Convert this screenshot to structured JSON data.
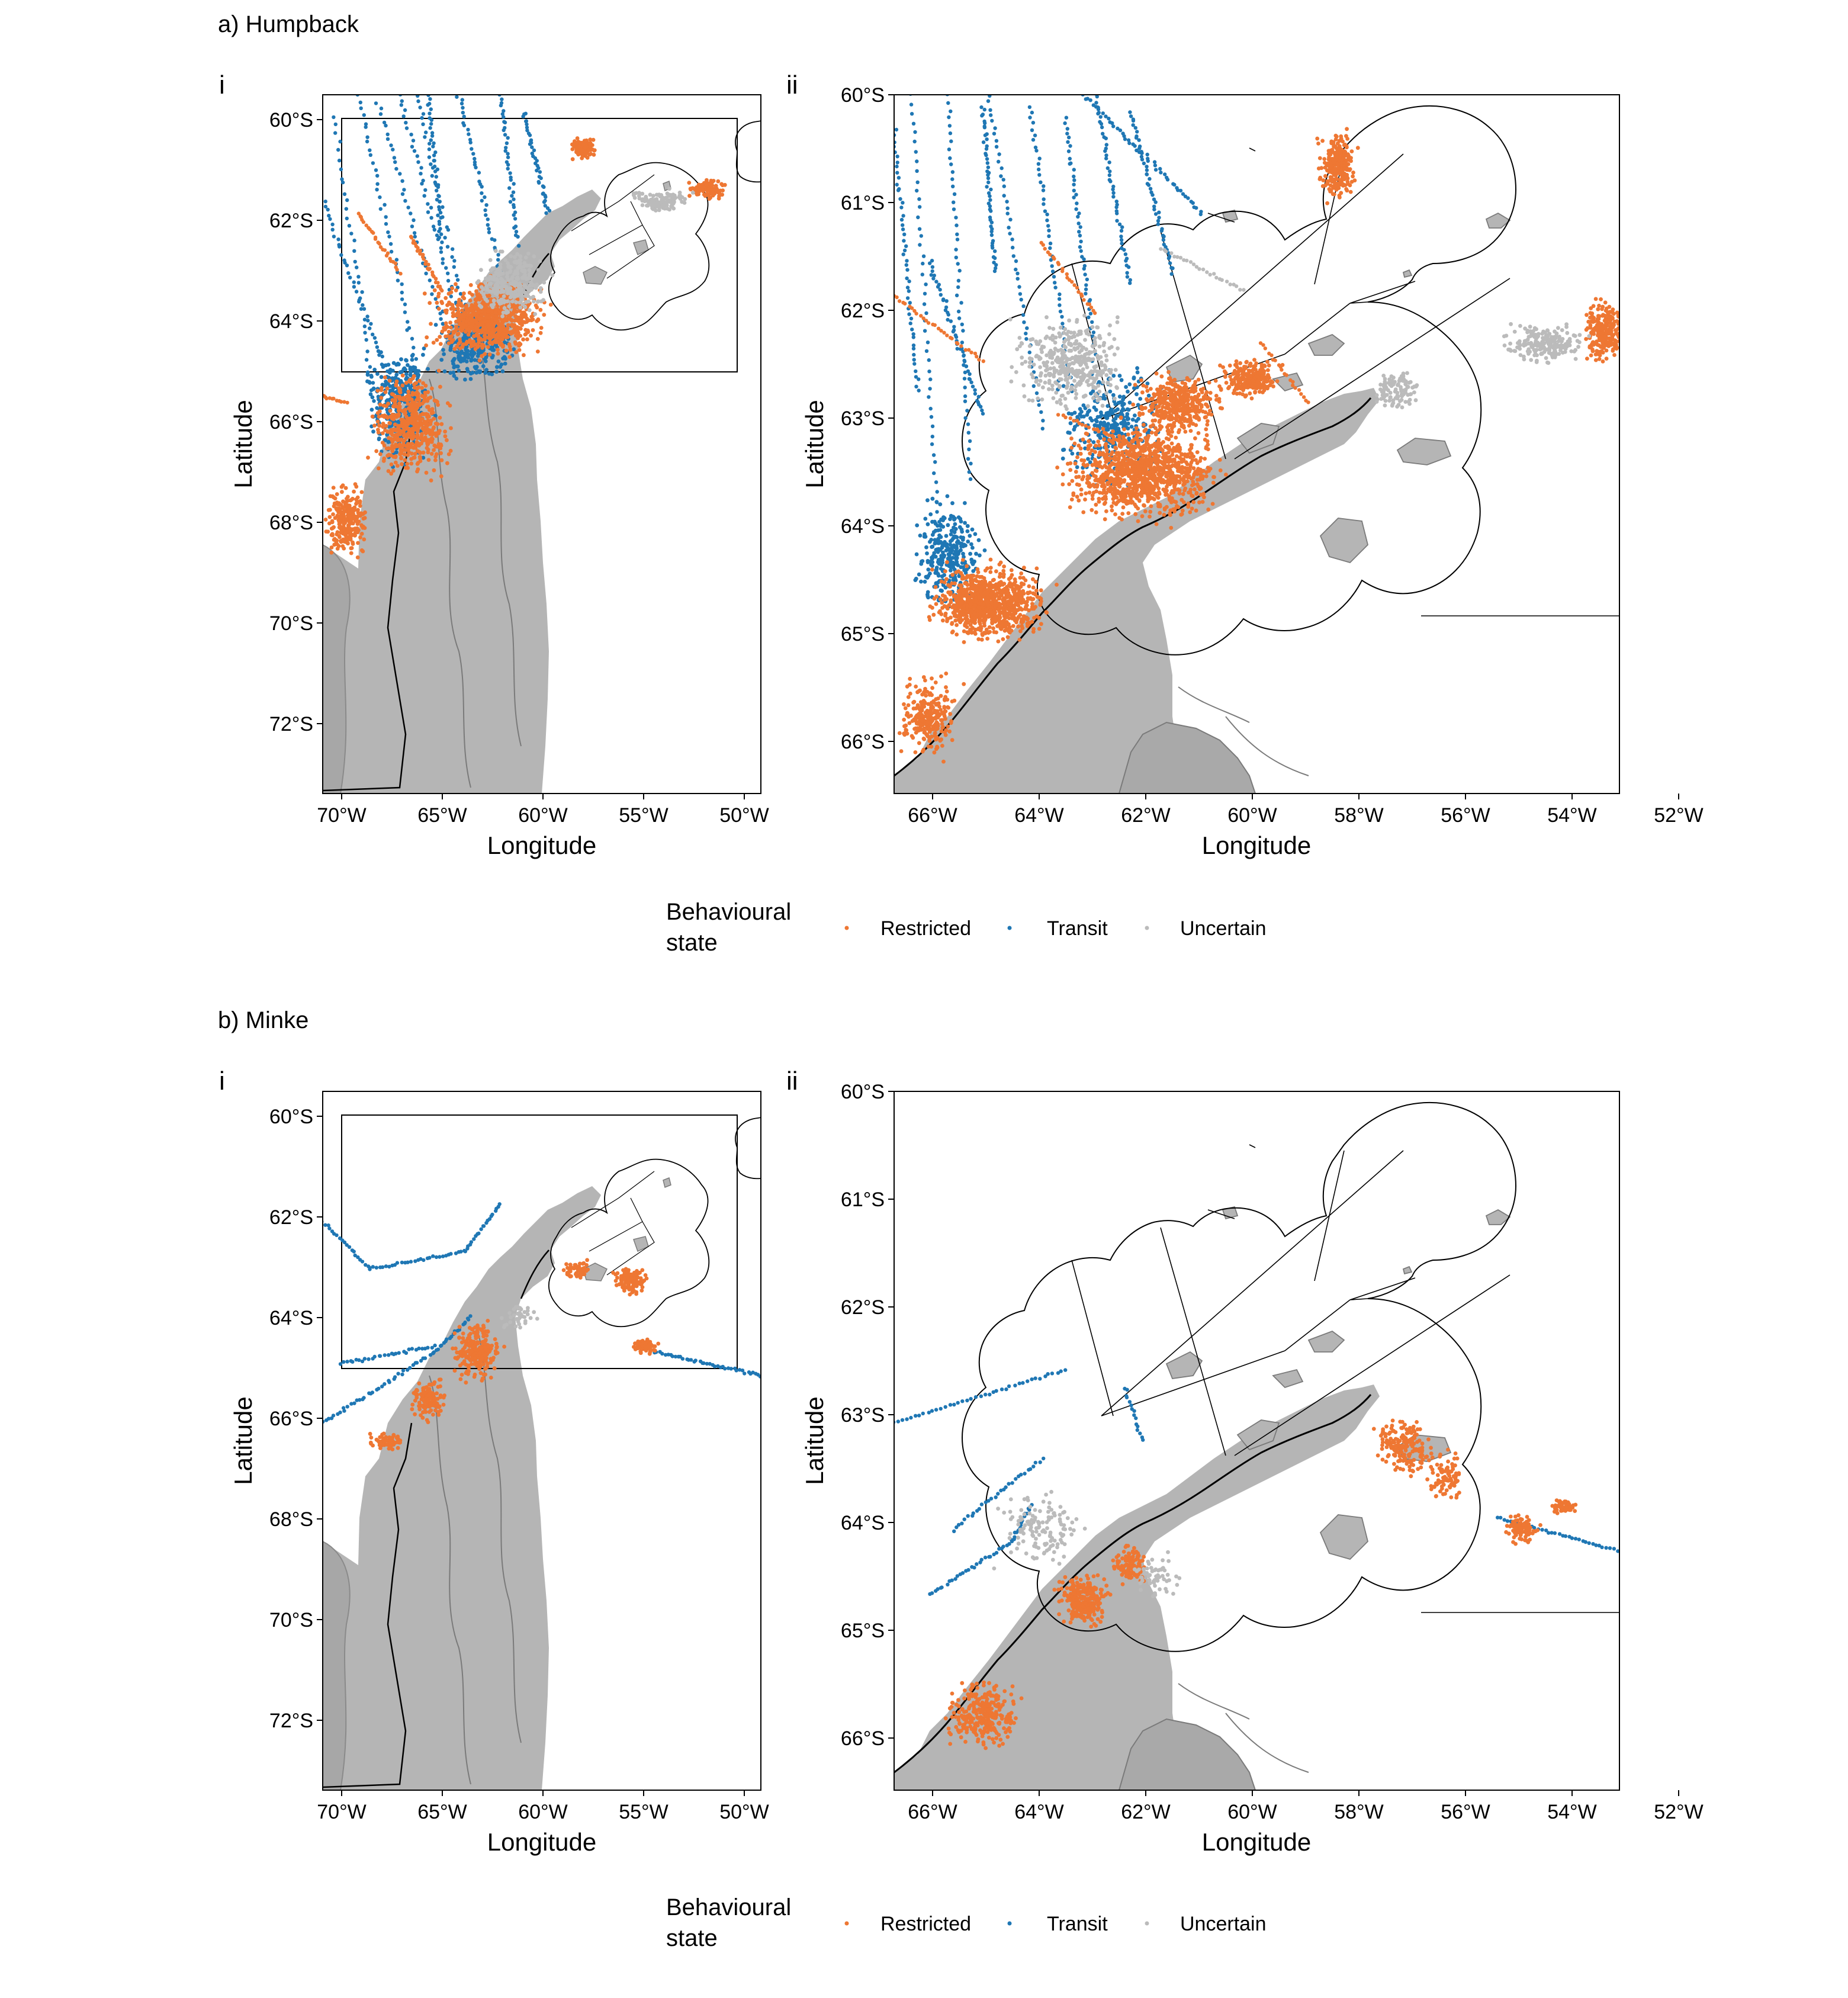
{
  "colors": {
    "restricted": "#ee7733",
    "transit": "#1f77b4",
    "uncertain": "#bbbbbb",
    "land": "#b5b5b5",
    "land_edge": "#7a7a7a"
  },
  "panels": [
    {
      "title": "a) Humpback",
      "overview": {
        "label": "i",
        "x_ticks": [
          "70°W",
          "65°W",
          "60°W",
          "55°W",
          "50°W"
        ],
        "y_ticks": [
          "60°S",
          "62°S",
          "64°S",
          "66°S",
          "68°S",
          "70°S",
          "72°S"
        ],
        "xlabel": "Longitude",
        "ylabel": "Latitude"
      },
      "detail": {
        "label": "ii",
        "x_ticks": [
          "66°W",
          "64°W",
          "62°W",
          "60°W",
          "58°W",
          "56°W",
          "54°W",
          "52°W"
        ],
        "y_ticks": [
          "60°S",
          "61°S",
          "62°S",
          "63°S",
          "64°S",
          "65°S",
          "66°S"
        ],
        "xlabel": "Longitude",
        "ylabel": "Latitude"
      },
      "legend": {
        "title_line1": "Behavioural",
        "title_line2": "state",
        "items": [
          {
            "label": "Restricted",
            "color_key": "restricted"
          },
          {
            "label": "Transit",
            "color_key": "transit"
          },
          {
            "label": "Uncertain",
            "color_key": "uncertain"
          }
        ]
      }
    },
    {
      "title": "b) Minke",
      "overview": {
        "label": "i",
        "x_ticks": [
          "70°W",
          "65°W",
          "60°W",
          "55°W",
          "50°W"
        ],
        "y_ticks": [
          "60°S",
          "62°S",
          "64°S",
          "66°S",
          "68°S",
          "70°S",
          "72°S"
        ],
        "xlabel": "Longitude",
        "ylabel": "Latitude"
      },
      "detail": {
        "label": "ii",
        "x_ticks": [
          "66°W",
          "64°W",
          "62°W",
          "60°W",
          "58°W",
          "56°W",
          "54°W",
          "52°W"
        ],
        "y_ticks": [
          "60°S",
          "61°S",
          "62°S",
          "63°S",
          "64°S",
          "65°S",
          "66°S"
        ],
        "xlabel": "Longitude",
        "ylabel": "Latitude"
      },
      "legend": {
        "title_line1": "Behavioural",
        "title_line2": "state",
        "items": [
          {
            "label": "Restricted",
            "color_key": "restricted"
          },
          {
            "label": "Transit",
            "color_key": "transit"
          },
          {
            "label": "Uncertain",
            "color_key": "uncertain"
          }
        ]
      }
    }
  ]
}
